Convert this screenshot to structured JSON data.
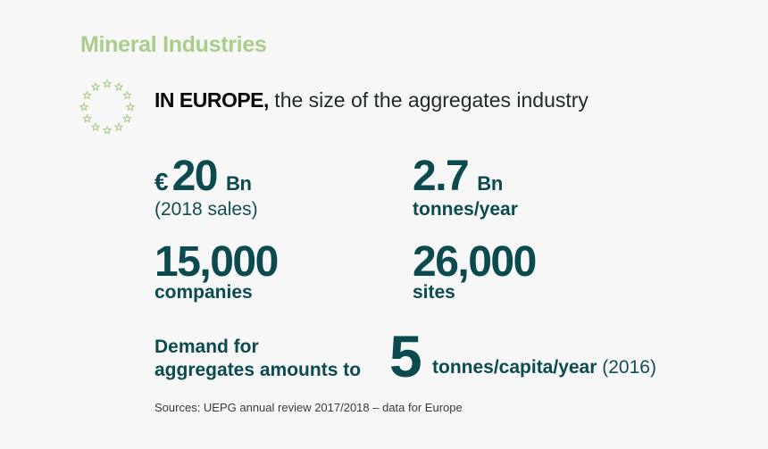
{
  "title": "Mineral Industries",
  "intro": {
    "strong": "IN EUROPE,",
    "rest": " the size of the aggregates industry"
  },
  "stats": {
    "sales": {
      "currency": "€",
      "value": "20",
      "unit": "Bn",
      "label": "(2018 sales)"
    },
    "tonnes": {
      "value": "2.7",
      "unit": "Bn",
      "label": "tonnes/year"
    },
    "companies": {
      "value": "15,000",
      "label": "companies"
    },
    "sites": {
      "value": "26,000",
      "label": "sites"
    }
  },
  "demand": {
    "line1": "Demand for",
    "line2": "aggregates amounts to",
    "value": "5",
    "unit": "tonnes/capita/year",
    "year": "(2016)"
  },
  "source": "Sources: UEPG annual review 2017/2018 – data for Europe",
  "colors": {
    "title": "#a9cd8c",
    "teal": "#0b4a4f",
    "stars": "#a9cd8c"
  },
  "icons": [
    "eu-stars-icon"
  ]
}
